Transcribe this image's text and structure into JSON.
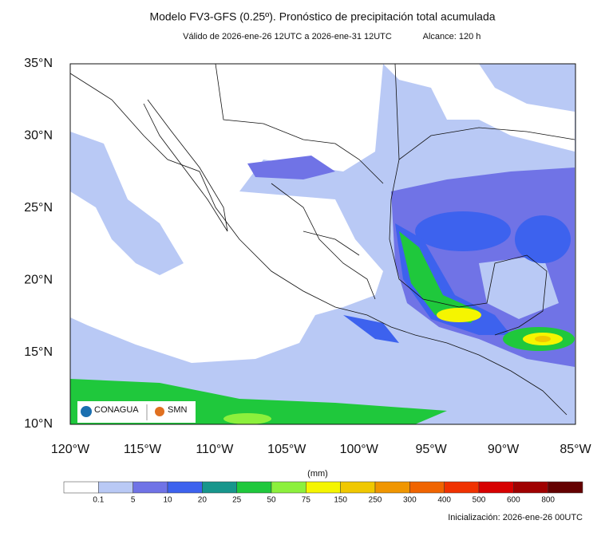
{
  "header": {
    "title": "Modelo FV3-GFS (0.25º). Pronóstico de precipitación total acumulada",
    "valid": "Válido de 2026-ene-26 12UTC a 2026-ene-31 12UTC",
    "range": "Alcance: 120 h"
  },
  "map": {
    "lat_labels": [
      "35°N",
      "30°N",
      "25°N",
      "20°N",
      "15°N",
      "10°N"
    ],
    "lon_labels": [
      "120°W",
      "115°W",
      "110°W",
      "105°W",
      "100°W",
      "95°W",
      "90°W",
      "85°W"
    ],
    "logos": [
      "CONAGUA",
      "SMN"
    ]
  },
  "legend": {
    "unit": "(mm)",
    "levels": [
      "0.1",
      "5",
      "10",
      "20",
      "25",
      "50",
      "75",
      "150",
      "250",
      "300",
      "400",
      "500",
      "600",
      "800"
    ],
    "colors": [
      "#ffffff",
      "#b9c9f5",
      "#7073e6",
      "#3d62ee",
      "#17968c",
      "#1fc83c",
      "#8cf03c",
      "#f5f500",
      "#f0c800",
      "#f09600",
      "#f06400",
      "#f03200",
      "#d70000",
      "#a00000",
      "#640000"
    ]
  },
  "footer": {
    "init": "Inicialización: 2026-ene-26 00UTC"
  }
}
